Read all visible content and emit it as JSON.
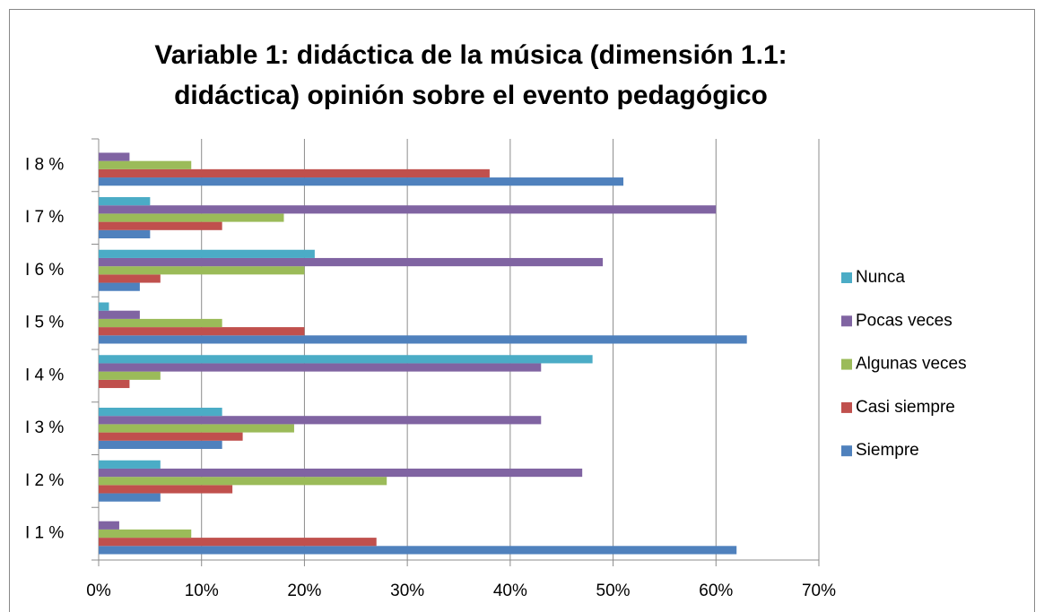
{
  "chart_data": {
    "type": "bar",
    "orientation": "horizontal",
    "title": [
      "Variable 1: didáctica de la música (dimensión 1.1:",
      "didáctica) opinión sobre el evento pedagógico"
    ],
    "categories": [
      "I 1 %",
      "I 2 %",
      "I 3 %",
      "I 4 %",
      "I 5 %",
      "I 6 %",
      "I 7 %",
      "I 8 %"
    ],
    "series": [
      {
        "name": "Siempre",
        "color": "#4f81bd",
        "values": [
          62,
          6,
          12,
          0,
          63,
          4,
          5,
          51
        ]
      },
      {
        "name": "Casi siempre",
        "color": "#c0504d",
        "values": [
          27,
          13,
          14,
          3,
          20,
          6,
          12,
          38
        ]
      },
      {
        "name": "Algunas veces",
        "color": "#9bbb59",
        "values": [
          9,
          28,
          19,
          6,
          12,
          20,
          18,
          9
        ]
      },
      {
        "name": "Pocas veces",
        "color": "#8064a2",
        "values": [
          2,
          47,
          43,
          43,
          4,
          49,
          60,
          3
        ]
      },
      {
        "name": "Nunca",
        "color": "#4bacc6",
        "values": [
          0,
          6,
          12,
          48,
          1,
          21,
          5,
          0
        ]
      }
    ],
    "xlim": [
      0,
      70
    ],
    "xticks": [
      {
        "value": 0,
        "label": "0%"
      },
      {
        "value": 10,
        "label": "10%"
      },
      {
        "value": 20,
        "label": "20%"
      },
      {
        "value": 30,
        "label": "30%"
      },
      {
        "value": 40,
        "label": "40%"
      },
      {
        "value": 50,
        "label": "50%"
      },
      {
        "value": 60,
        "label": "60%"
      },
      {
        "value": 70,
        "label": "70%"
      }
    ],
    "grid": true,
    "legend": "right"
  }
}
